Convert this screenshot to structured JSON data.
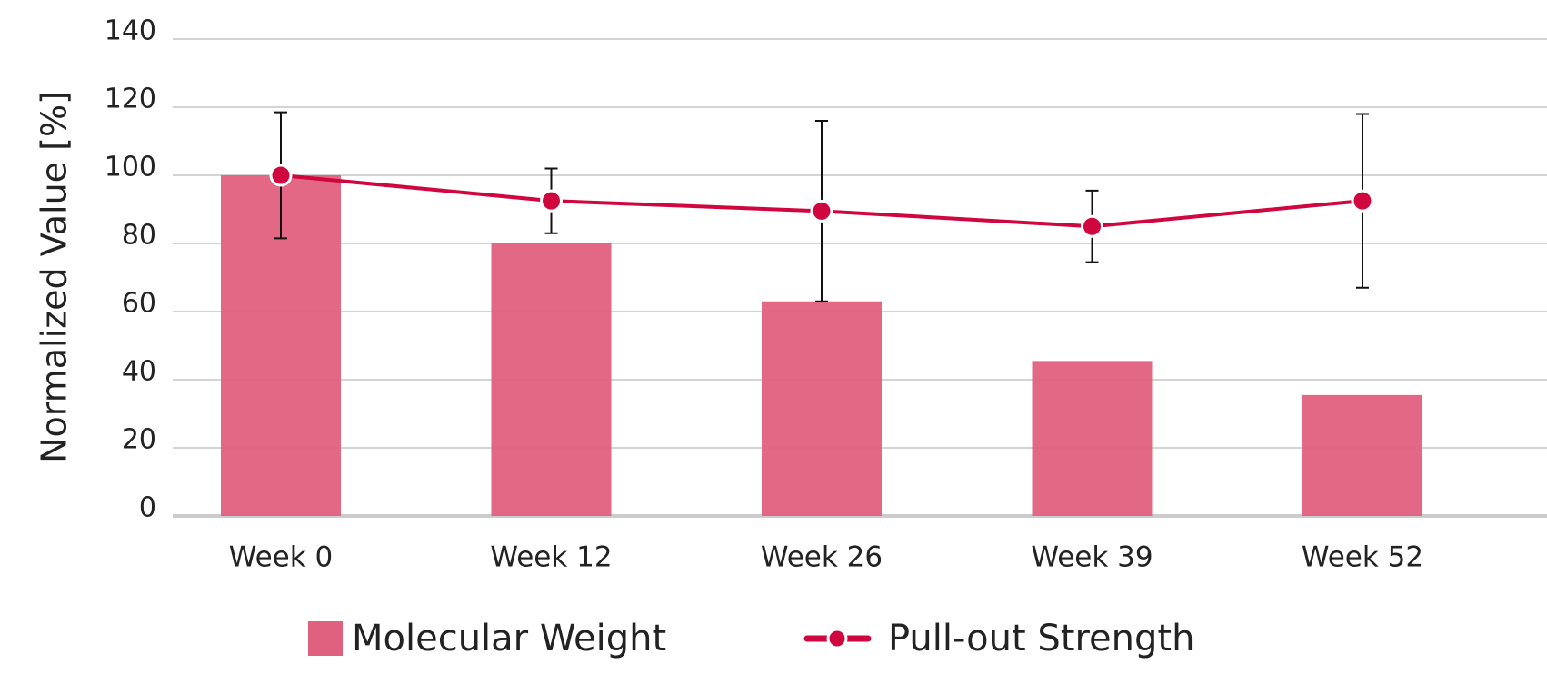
{
  "chart_data": {
    "type": "bar-line",
    "y_label": "Normalized Value [%]",
    "categories": [
      "Week 0",
      "Week 12",
      "Week 26",
      "Week 39",
      "Week 52"
    ],
    "series": [
      {
        "name": "Molecular Weight",
        "type": "bar",
        "color": "#e0607f",
        "values": [
          100,
          80,
          63,
          45.5,
          35.5
        ]
      },
      {
        "name": "Pull-out Strength",
        "type": "line",
        "color": "#d0063e",
        "values": [
          100,
          92.5,
          89.5,
          85,
          92.5
        ],
        "errors": [
          18.5,
          9.5,
          26.5,
          10.5,
          25.5
        ]
      }
    ],
    "ylim": [
      0,
      140
    ],
    "yticks": [
      0,
      20,
      40,
      60,
      80,
      100,
      120,
      140
    ],
    "grid": true,
    "legend": "bottom"
  }
}
